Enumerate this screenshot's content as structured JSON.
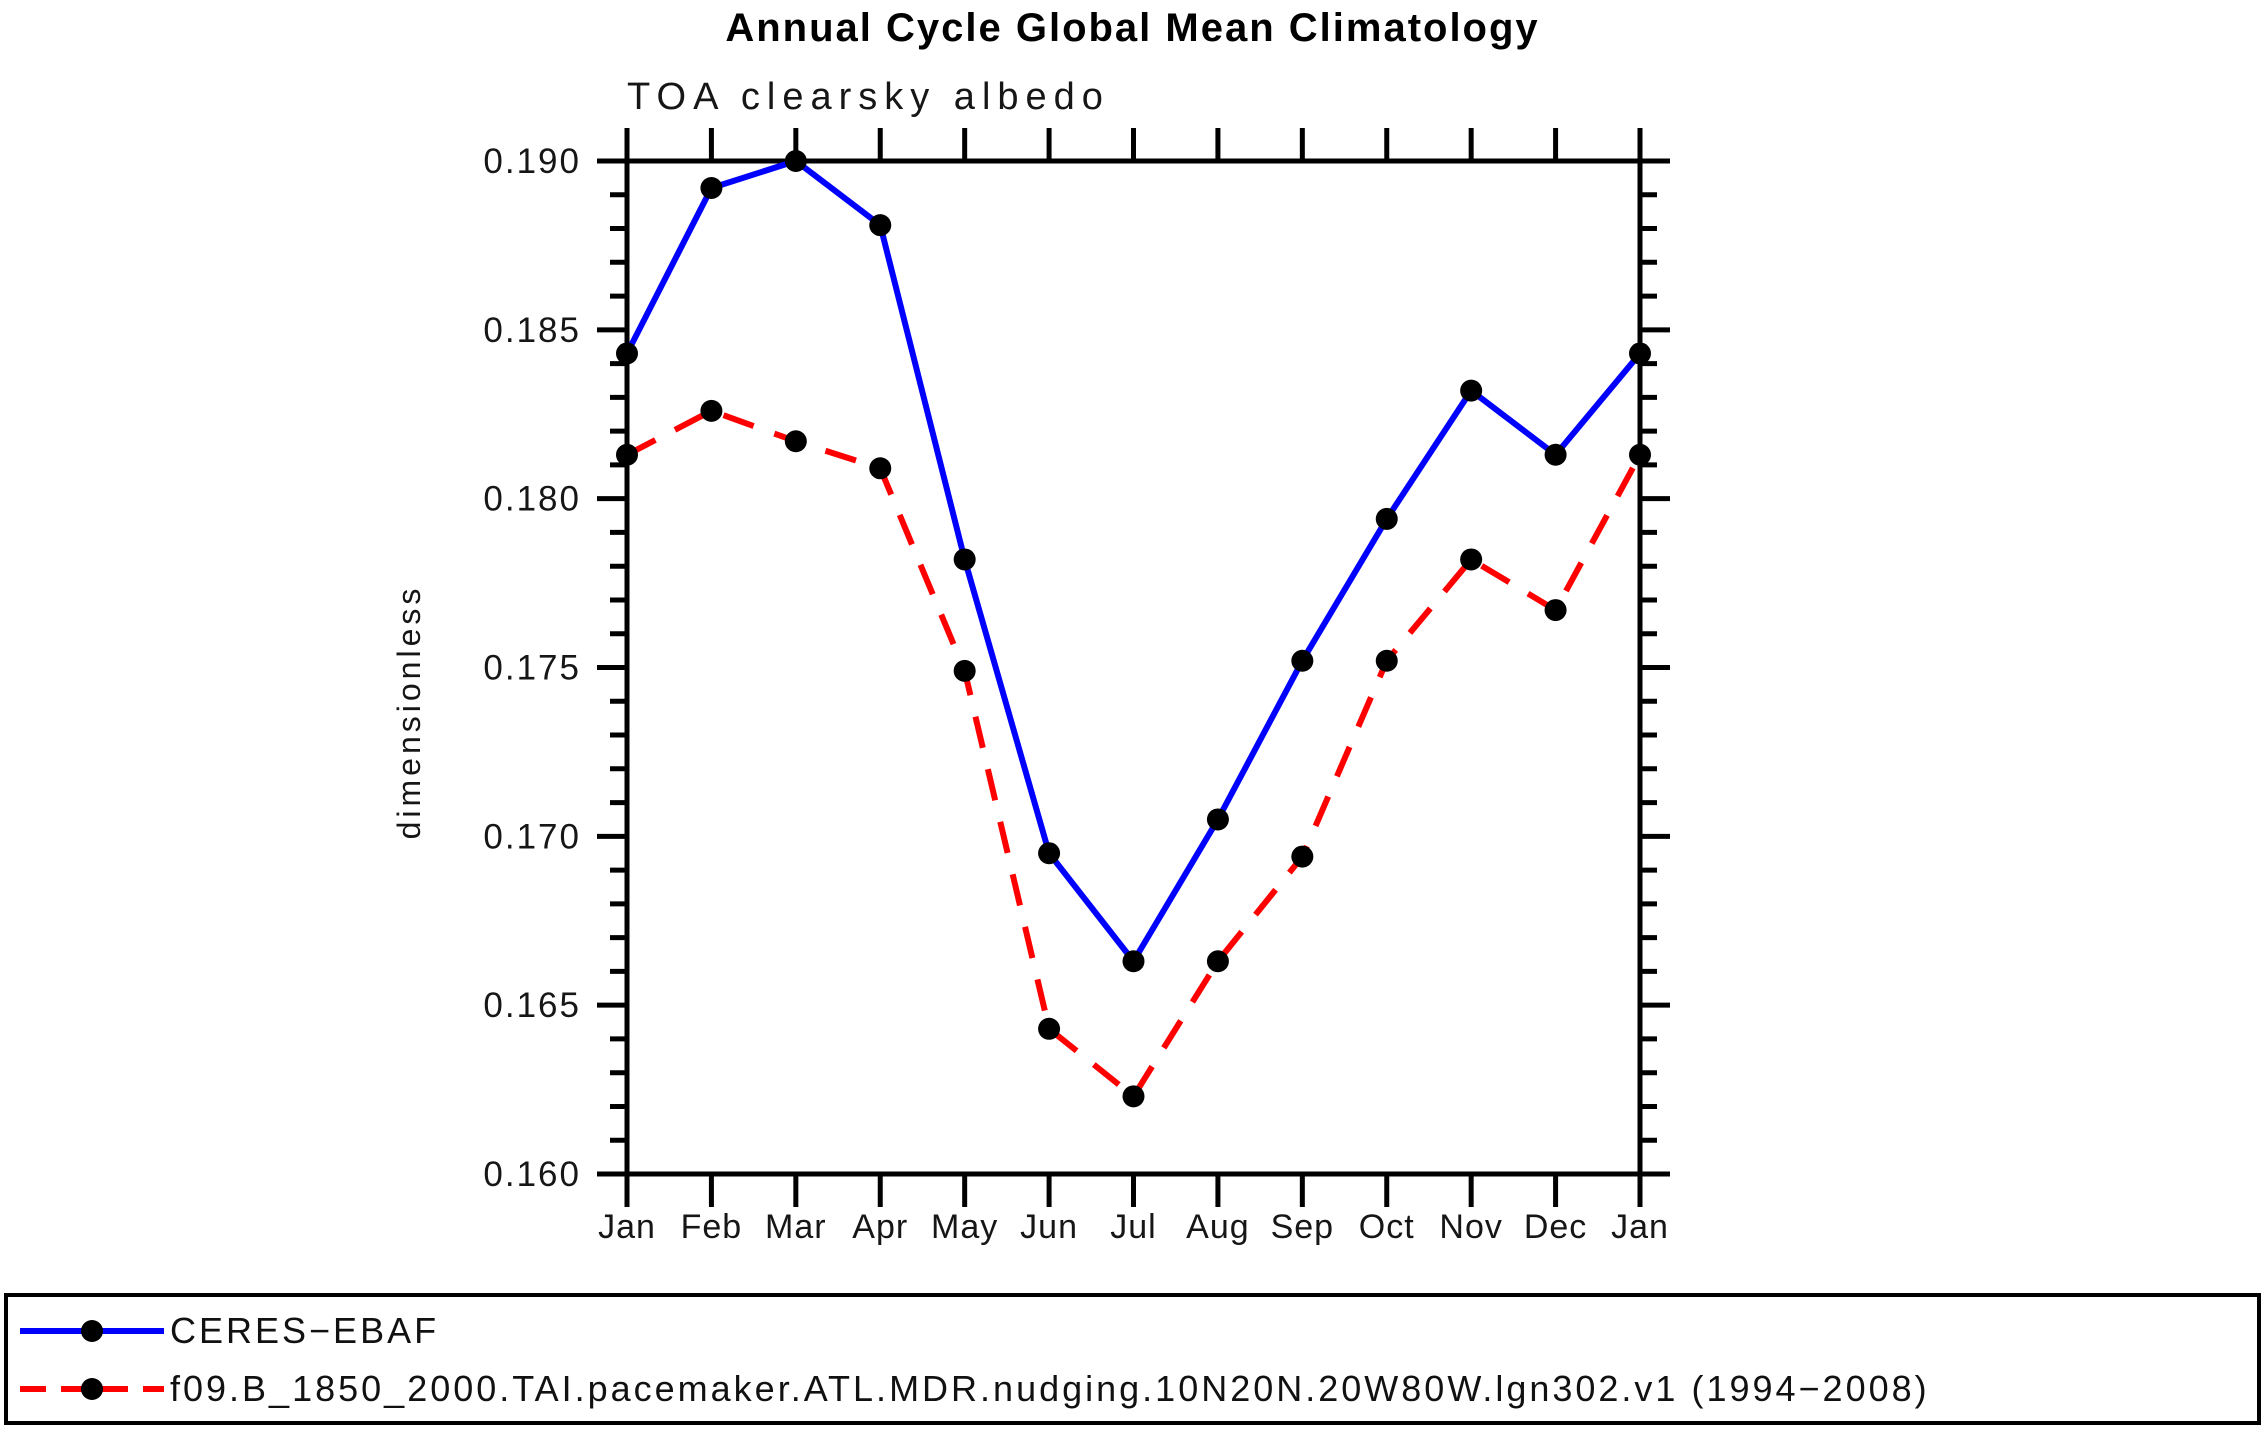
{
  "chart_data": {
    "type": "line",
    "title": "Annual Cycle Global Mean Climatology",
    "subtitle": "TOA clearsky albedo",
    "ylabel": "dimensionless",
    "xlabel": "",
    "categories": [
      "Jan",
      "Feb",
      "Mar",
      "Apr",
      "May",
      "Jun",
      "Jul",
      "Aug",
      "Sep",
      "Oct",
      "Nov",
      "Dec",
      "Jan"
    ],
    "ylim": [
      0.16,
      0.19
    ],
    "y_major_tick_step": 0.005,
    "y_minor_tick_step": 0.001,
    "y_tick_labels": [
      "0.160",
      "0.165",
      "0.170",
      "0.175",
      "0.180",
      "0.185",
      "0.190"
    ],
    "grid": false,
    "legend_position": "bottom",
    "axis_color": "#000000",
    "marker": "filled-circle",
    "marker_color": "#000000",
    "series": [
      {
        "name": "CERES−EBAF",
        "color": "#0000ff",
        "line_style": "solid",
        "values": [
          0.1843,
          0.1892,
          0.19,
          0.1881,
          0.1782,
          0.1695,
          0.1663,
          0.1705,
          0.1752,
          0.1794,
          0.1832,
          0.1813,
          0.1843
        ]
      },
      {
        "name": "f09.B_1850_2000.TAI.pacemaker.ATL.MDR.nudging.10N20N.20W80W.lgn302.v1 (1994−2008)",
        "color": "#ff0000",
        "line_style": "dashed",
        "values": [
          0.1813,
          0.1826,
          0.1817,
          0.1809,
          0.1749,
          0.1643,
          0.1623,
          0.1663,
          0.1694,
          0.1752,
          0.1782,
          0.1767,
          0.1813
        ]
      }
    ]
  }
}
